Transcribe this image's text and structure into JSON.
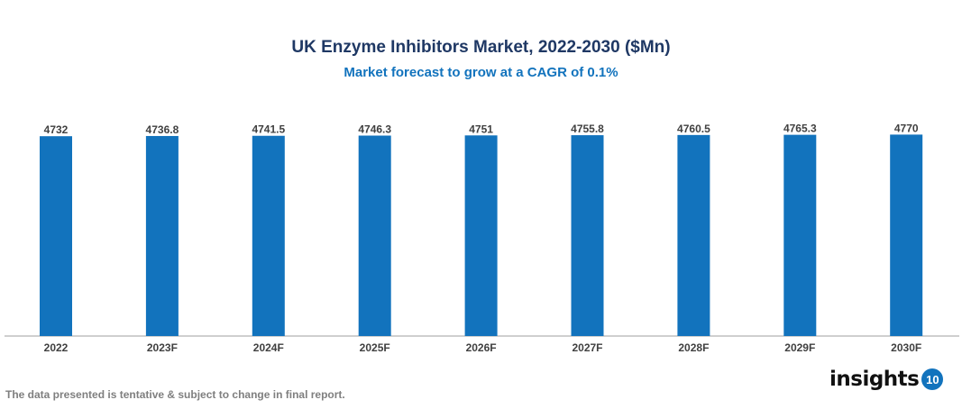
{
  "chart_data": {
    "type": "bar",
    "title": "UK Enzyme Inhibitors Market, 2022-2030 ($Mn)",
    "subtitle": "Market forecast to grow at a CAGR of 0.1%",
    "categories": [
      "2022",
      "2023F",
      "2024F",
      "2025F",
      "2026F",
      "2027F",
      "2028F",
      "2029F",
      "2030F"
    ],
    "values": [
      4732,
      4736.8,
      4741.5,
      4746.3,
      4751,
      4755.8,
      4760.5,
      4765.3,
      4770
    ],
    "data_labels": [
      "4732",
      "4736.8",
      "4741.5",
      "4746.3",
      "4751",
      "4755.8",
      "4760.5",
      "4765.3",
      "4770"
    ],
    "xlabel": "",
    "ylabel": "",
    "ylim": [
      0,
      4800
    ],
    "grid": false,
    "legend": "none",
    "bar_color": "#1273bd"
  },
  "footnote": "The data presented is tentative & subject to change in final report.",
  "logo": {
    "text": "insights",
    "badge": "10"
  }
}
